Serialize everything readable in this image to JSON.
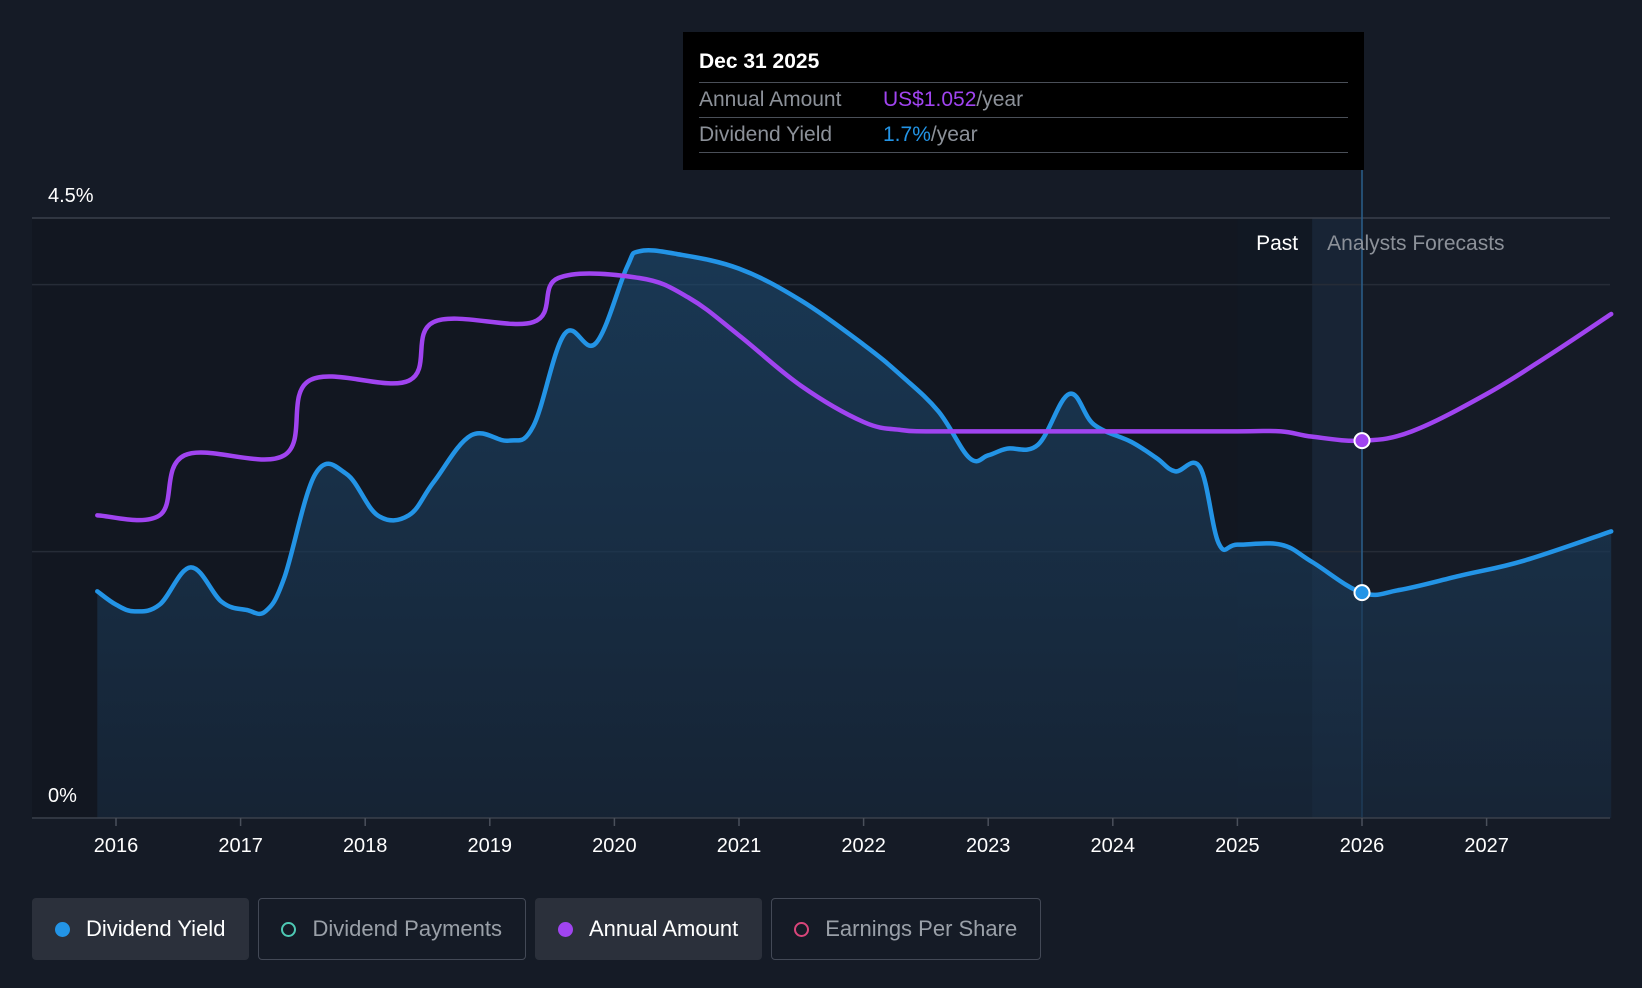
{
  "chart_data": {
    "type": "line",
    "title": "",
    "ylabel": "",
    "y_tick_labels": [
      "4.5%",
      "0%"
    ],
    "ylim": [
      0,
      4.5
    ],
    "xlim": [
      2015.85,
      2028.0
    ],
    "x_ticks": [
      "2016",
      "2017",
      "2018",
      "2019",
      "2020",
      "2021",
      "2022",
      "2023",
      "2024",
      "2025",
      "2026",
      "2027"
    ],
    "regions": {
      "past_label": "Past",
      "forecast_label": "Analysts Forecasts",
      "past_start": 2025.0,
      "forecast_start": 2025.6,
      "cursor": 2026.0
    },
    "grid": true,
    "series": [
      {
        "name": "Dividend Yield",
        "color": "#2394e6",
        "unit": "%",
        "points": [
          [
            2015.85,
            1.7
          ],
          [
            2016.0,
            1.6
          ],
          [
            2016.15,
            1.55
          ],
          [
            2016.35,
            1.6
          ],
          [
            2016.6,
            1.88
          ],
          [
            2016.85,
            1.62
          ],
          [
            2017.05,
            1.56
          ],
          [
            2017.2,
            1.55
          ],
          [
            2017.35,
            1.8
          ],
          [
            2017.6,
            2.58
          ],
          [
            2017.85,
            2.58
          ],
          [
            2018.1,
            2.27
          ],
          [
            2018.35,
            2.27
          ],
          [
            2018.55,
            2.52
          ],
          [
            2018.85,
            2.87
          ],
          [
            2019.15,
            2.83
          ],
          [
            2019.35,
            2.94
          ],
          [
            2019.6,
            3.63
          ],
          [
            2019.85,
            3.56
          ],
          [
            2020.1,
            4.13
          ],
          [
            2020.2,
            4.25
          ],
          [
            2020.5,
            4.23
          ],
          [
            2021.0,
            4.12
          ],
          [
            2021.5,
            3.88
          ],
          [
            2022.0,
            3.55
          ],
          [
            2022.3,
            3.32
          ],
          [
            2022.6,
            3.05
          ],
          [
            2022.85,
            2.7
          ],
          [
            2023.0,
            2.72
          ],
          [
            2023.15,
            2.77
          ],
          [
            2023.4,
            2.8
          ],
          [
            2023.65,
            3.18
          ],
          [
            2023.85,
            2.95
          ],
          [
            2024.15,
            2.82
          ],
          [
            2024.35,
            2.7
          ],
          [
            2024.5,
            2.6
          ],
          [
            2024.7,
            2.63
          ],
          [
            2024.85,
            2.06
          ],
          [
            2025.0,
            2.05
          ],
          [
            2025.35,
            2.05
          ],
          [
            2025.6,
            1.92
          ],
          [
            2026.0,
            1.69
          ],
          [
            2026.3,
            1.71
          ],
          [
            2026.8,
            1.82
          ],
          [
            2027.3,
            1.93
          ],
          [
            2028.0,
            2.15
          ]
        ]
      },
      {
        "name": "Annual Amount",
        "color": "#a044f0",
        "points": [
          [
            2015.85,
            2.27
          ],
          [
            2016.35,
            2.27
          ],
          [
            2016.55,
            2.72
          ],
          [
            2017.35,
            2.72
          ],
          [
            2017.55,
            3.28
          ],
          [
            2018.35,
            3.28
          ],
          [
            2018.55,
            3.72
          ],
          [
            2019.35,
            3.72
          ],
          [
            2019.55,
            4.05
          ],
          [
            2020.2,
            4.05
          ],
          [
            2020.6,
            3.9
          ],
          [
            2021.0,
            3.62
          ],
          [
            2021.5,
            3.24
          ],
          [
            2022.0,
            2.97
          ],
          [
            2022.3,
            2.91
          ],
          [
            2022.5,
            2.9
          ],
          [
            2023.0,
            2.9
          ],
          [
            2024.0,
            2.9
          ],
          [
            2025.0,
            2.9
          ],
          [
            2025.35,
            2.9
          ],
          [
            2025.6,
            2.86
          ],
          [
            2026.0,
            2.83
          ],
          [
            2026.4,
            2.9
          ],
          [
            2027.0,
            3.18
          ],
          [
            2027.5,
            3.47
          ],
          [
            2028.0,
            3.78
          ]
        ]
      }
    ],
    "tooltip": {
      "date": "Dec 31 2025",
      "rows": [
        {
          "label": "Annual Amount",
          "value": "US$1.052",
          "unit": "/year",
          "color": "#a044f0"
        },
        {
          "label": "Dividend Yield",
          "value": "1.7%",
          "unit": "/year",
          "color": "#2394e6"
        }
      ]
    }
  },
  "legend": [
    {
      "label": "Dividend Yield",
      "color": "#2394e6",
      "active": true,
      "filled": true
    },
    {
      "label": "Dividend Payments",
      "color": "#4ec9b4",
      "active": false,
      "filled": false
    },
    {
      "label": "Annual Amount",
      "color": "#a044f0",
      "active": true,
      "filled": true
    },
    {
      "label": "Earnings Per Share",
      "color": "#d9457a",
      "active": false,
      "filled": false
    }
  ]
}
